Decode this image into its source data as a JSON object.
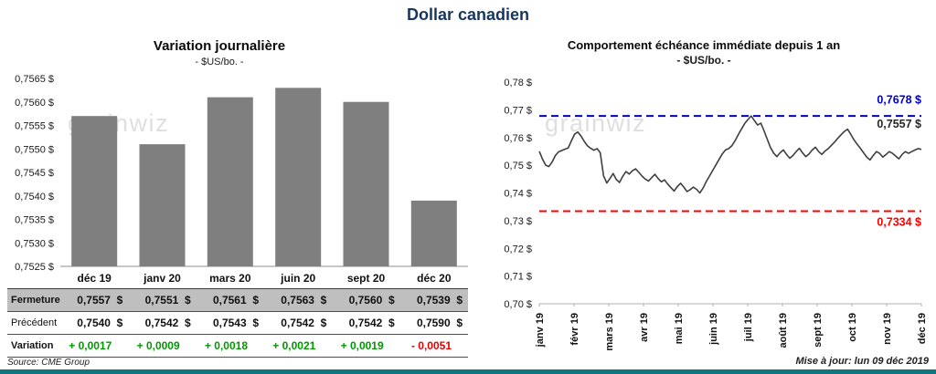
{
  "page": {
    "title": "Dollar canadien",
    "watermark": "grainwiz",
    "footer": {
      "source": "Source: CME Group",
      "updated": "Mise à jour: lun 09 déc 2019"
    },
    "colors": {
      "bar_fill": "#7F7F7F",
      "table_header_bg": "#BFBFBF",
      "positive": "#009900",
      "negative": "#E60000",
      "high_line": "#0000C8",
      "low_line": "#FF0000",
      "last_label": "#262626",
      "price_line": "#3F3F3F",
      "accent_bar": "#0F777B"
    }
  },
  "chart_data": [
    {
      "type": "bar",
      "title": "Variation journalière",
      "subtitle": "- $US/bo. -",
      "ylim": [
        0.7525,
        0.7565
      ],
      "ytick_labels": [
        "0,7565 $",
        "0,7560 $",
        "0,7555 $",
        "0,7550 $",
        "0,7545 $",
        "0,7540 $",
        "0,7535 $",
        "0,7530 $",
        "0,7525 $"
      ],
      "categories": [
        "déc 19",
        "janv 20",
        "mars 20",
        "juin 20",
        "sept 20",
        "déc 20"
      ],
      "values": [
        0.7557,
        0.7551,
        0.7561,
        0.7563,
        0.756,
        0.7539
      ],
      "legend": "none",
      "grid": false
    },
    {
      "type": "line",
      "title": "Comportement échéance immédiate depuis 1 an",
      "subtitle": "- $US/bo. -",
      "ylim": [
        0.7,
        0.78
      ],
      "ytick_labels": [
        "0,78 $",
        "0,77 $",
        "0,76 $",
        "0,75 $",
        "0,74 $",
        "0,73 $",
        "0,72 $",
        "0,71 $",
        "0,70 $"
      ],
      "x_labels": [
        "janv 19",
        "févr 19",
        "mars 19",
        "avr 19",
        "mai 19",
        "juin 19",
        "juil 19",
        "août 19",
        "sept 19",
        "oct 19",
        "nov 19",
        "déc 19"
      ],
      "values": [
        0.755,
        0.7522,
        0.75,
        0.7495,
        0.7512,
        0.7535,
        0.7548,
        0.7553,
        0.7558,
        0.7562,
        0.7588,
        0.7612,
        0.762,
        0.7605,
        0.7586,
        0.757,
        0.7561,
        0.7554,
        0.756,
        0.7545,
        0.7462,
        0.7436,
        0.7452,
        0.747,
        0.7448,
        0.7438,
        0.746,
        0.7477,
        0.7468,
        0.748,
        0.7487,
        0.7474,
        0.7461,
        0.745,
        0.7443,
        0.7455,
        0.7467,
        0.7452,
        0.744,
        0.7447,
        0.7432,
        0.7419,
        0.7407,
        0.7423,
        0.7435,
        0.7421,
        0.7405,
        0.7412,
        0.7421,
        0.7413,
        0.74,
        0.7417,
        0.7441,
        0.7461,
        0.7481,
        0.7501,
        0.7521,
        0.7541,
        0.7555,
        0.756,
        0.7571,
        0.7589,
        0.7611,
        0.7631,
        0.7651,
        0.7665,
        0.7678,
        0.7661,
        0.7645,
        0.7652,
        0.7624,
        0.7594,
        0.7564,
        0.7544,
        0.7531,
        0.7545,
        0.7555,
        0.7539,
        0.7525,
        0.7535,
        0.7549,
        0.7561,
        0.7545,
        0.7531,
        0.7541,
        0.7555,
        0.7565,
        0.7549,
        0.7539,
        0.7551,
        0.756,
        0.7572,
        0.7584,
        0.7598,
        0.761,
        0.7622,
        0.763,
        0.7612,
        0.7592,
        0.7576,
        0.7561,
        0.7545,
        0.7529,
        0.7519,
        0.7535,
        0.7549,
        0.7543,
        0.7529,
        0.7539,
        0.7549,
        0.7543,
        0.7533,
        0.7523,
        0.7539,
        0.7549,
        0.7543,
        0.7549,
        0.7555,
        0.756,
        0.7557
      ],
      "annotations": [
        {
          "name": "year-high",
          "label": "0,7678 $",
          "line_at": 0.7678,
          "label_at": 0.7722,
          "color": "#0000C8",
          "dashed": true
        },
        {
          "name": "last-price",
          "label": "0,7557 $",
          "line_at": null,
          "label_at": 0.7636,
          "color": "#262626",
          "dashed": false
        },
        {
          "name": "year-low",
          "label": "0,7334 $",
          "line_at": 0.7334,
          "label_at": 0.7282,
          "color": "#FF0000",
          "dashed": true
        }
      ],
      "legend": "none",
      "grid": false
    }
  ],
  "table": {
    "rows": [
      {
        "label": "Fermeture",
        "bg": "#BFBFBF",
        "label_bold": true,
        "cell_class": "money",
        "values": [
          "0,7557  $",
          "0,7551  $",
          "0,7561  $",
          "0,7563  $",
          "0,7560  $",
          "0,7539  $"
        ]
      },
      {
        "label": "Précédent",
        "bg": "#FFFFFF",
        "label_bold": false,
        "cell_class": "money",
        "values": [
          "0,7540  $",
          "0,7542  $",
          "0,7543  $",
          "0,7542  $",
          "0,7542  $",
          "0,7590  $"
        ]
      },
      {
        "label": "Variation",
        "bg": "#FFFFFF",
        "label_bold": true,
        "cell_class": "delta",
        "values": [
          "+ 0,0017",
          "+ 0,0009",
          "+ 0,0018",
          "+ 0,0021",
          "+ 0,0019",
          "- 0,0051"
        ],
        "value_colors": [
          "#009900",
          "#009900",
          "#009900",
          "#009900",
          "#009900",
          "#E60000"
        ]
      }
    ]
  }
}
